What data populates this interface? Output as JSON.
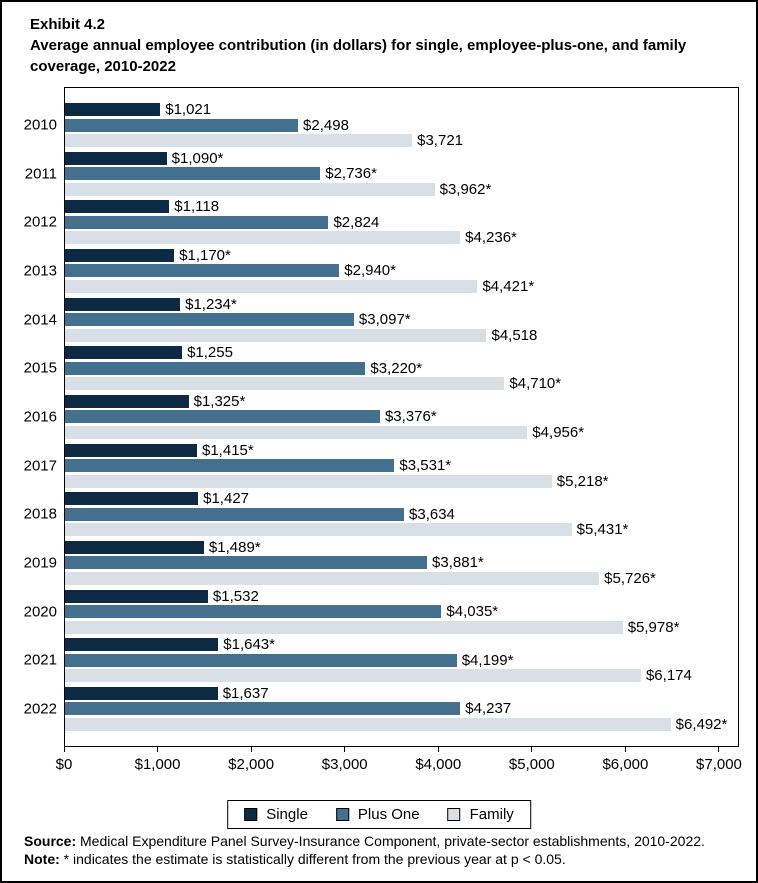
{
  "header": {
    "exhibit": "Exhibit 4.2",
    "title": "Average annual employee contribution (in dollars) for single, employee-plus-one, and family coverage, 2010-2022"
  },
  "chart_data": {
    "type": "bar",
    "orientation": "horizontal",
    "title": "Average annual employee contribution (in dollars) for single, employee-plus-one, and family coverage, 2010-2022",
    "categories": [
      "2010",
      "2011",
      "2012",
      "2013",
      "2014",
      "2015",
      "2016",
      "2017",
      "2018",
      "2019",
      "2020",
      "2021",
      "2022"
    ],
    "series": [
      {
        "name": "Single",
        "color": "#0d2a45",
        "values": [
          1021,
          1090,
          1118,
          1170,
          1234,
          1255,
          1325,
          1415,
          1427,
          1489,
          1532,
          1643,
          1637
        ],
        "labels": [
          "$1,021",
          "$1,090*",
          "$1,118",
          "$1,170*",
          "$1,234*",
          "$1,255",
          "$1,325*",
          "$1,415*",
          "$1,427",
          "$1,489*",
          "$1,532",
          "$1,643*",
          "$1,637"
        ]
      },
      {
        "name": "Plus One",
        "color": "#44708f",
        "values": [
          2498,
          2736,
          2824,
          2940,
          3097,
          3220,
          3376,
          3531,
          3634,
          3881,
          4035,
          4199,
          4237
        ],
        "labels": [
          "$2,498",
          "$2,736*",
          "$2,824",
          "$2,940*",
          "$3,097*",
          "$3,220*",
          "$3,376*",
          "$3,531*",
          "$3,634",
          "$3,881*",
          "$4,035*",
          "$4,199*",
          "$4,237"
        ]
      },
      {
        "name": "Family",
        "color": "#d8dfe7",
        "values": [
          3721,
          3962,
          4236,
          4421,
          4518,
          4710,
          4956,
          5218,
          5431,
          5726,
          5978,
          6174,
          6492
        ],
        "labels": [
          "$3,721",
          "$3,962*",
          "$4,236*",
          "$4,421*",
          "$4,518",
          "$4,710*",
          "$4,956*",
          "$5,218*",
          "$5,431*",
          "$5,726*",
          "$5,978*",
          "$6,174",
          "$6,492*"
        ]
      }
    ],
    "x_ticks": [
      "$0",
      "$1,000",
      "$2,000",
      "$3,000",
      "$4,000",
      "$5,000",
      "$6,000",
      "$7,000"
    ],
    "x_tick_values": [
      0,
      1000,
      2000,
      3000,
      4000,
      5000,
      6000,
      7000
    ],
    "xlim": [
      0,
      7000
    ],
    "grid": false,
    "legend": [
      "Single",
      "Plus One",
      "Family"
    ],
    "legend_position": "bottom-center"
  },
  "footer": {
    "source_label": "Source:",
    "source_text": " Medical Expenditure Panel Survey-Insurance Component, private-sector establishments, 2010-2022.",
    "note_label": "Note:",
    "note_text": " * indicates the estimate is statistically different from the previous year at p < 0.05."
  }
}
